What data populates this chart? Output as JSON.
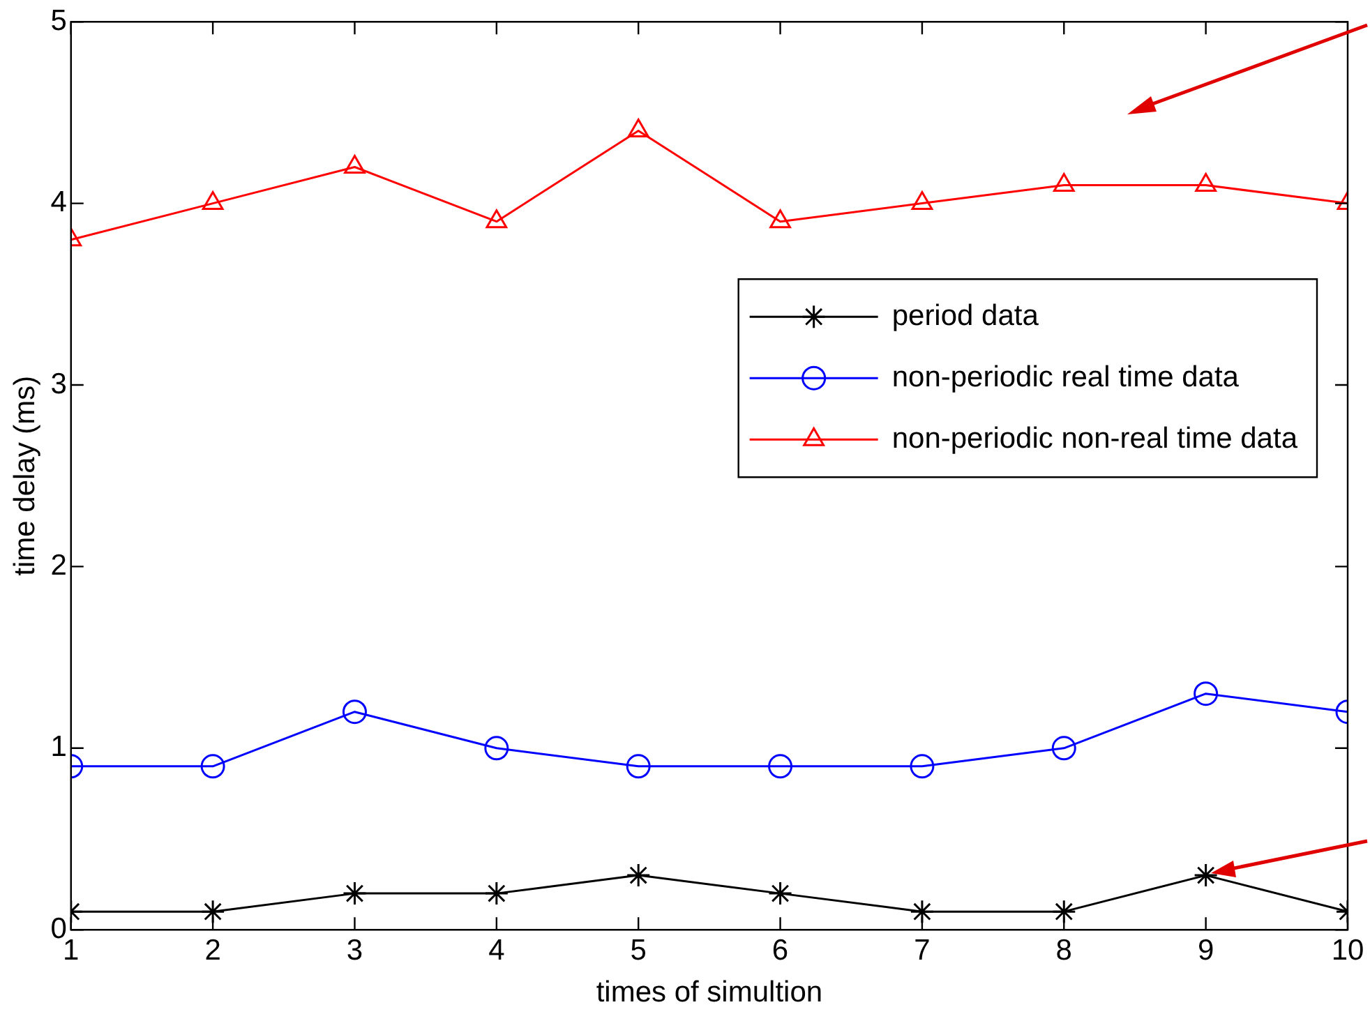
{
  "chart_data": {
    "type": "line",
    "xlabel": "times of simultion",
    "ylabel": "time delay (ms)",
    "x": [
      1,
      2,
      3,
      4,
      5,
      6,
      7,
      8,
      9,
      10
    ],
    "xlim": [
      1,
      10
    ],
    "xticks": [
      1,
      2,
      3,
      4,
      5,
      6,
      7,
      8,
      9,
      10
    ],
    "ylim": [
      0,
      5
    ],
    "yticks": [
      0,
      1,
      2,
      3,
      4,
      5
    ],
    "grid": false,
    "legend": "right",
    "line_style": "solid",
    "series": [
      {
        "name": "period data",
        "color": "#000000",
        "marker": "cross",
        "values": [
          0.1,
          0.1,
          0.2,
          0.2,
          0.3,
          0.2,
          0.1,
          0.1,
          0.3,
          0.1
        ]
      },
      {
        "name": "non-periodic real time data",
        "color": "#0000ff",
        "marker": "circle",
        "values": [
          0.9,
          0.9,
          1.2,
          1.0,
          0.9,
          0.9,
          0.9,
          1.0,
          1.3,
          1.2
        ]
      },
      {
        "name": "non-periodic non-real time data",
        "color": "#ff0000",
        "marker": "triangle",
        "values": [
          3.8,
          4.0,
          4.2,
          3.9,
          4.4,
          3.9,
          4.0,
          4.1,
          4.1,
          4.0
        ]
      }
    ]
  }
}
